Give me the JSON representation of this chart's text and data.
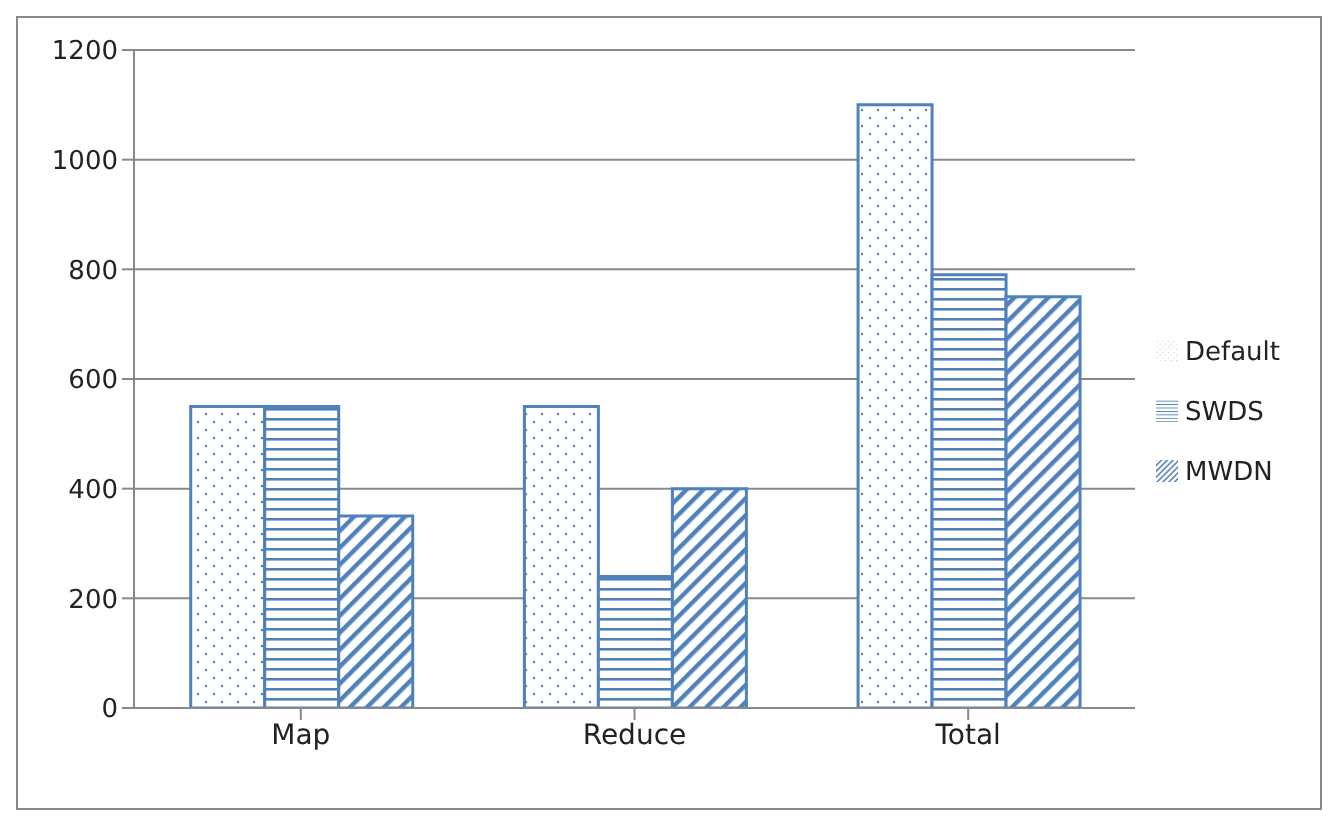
{
  "chart_data": {
    "type": "bar",
    "categories": [
      "Map",
      "Reduce",
      "Total"
    ],
    "series": [
      {
        "name": "Default",
        "color": "#4f81bd",
        "values": [
          550,
          550,
          1100
        ]
      },
      {
        "name": "SWDS",
        "color": "#4f81bd",
        "values": [
          550,
          240,
          790
        ]
      },
      {
        "name": "MWDN",
        "color": "#4f81bd",
        "values": [
          350,
          400,
          750
        ]
      }
    ],
    "ylim": [
      0,
      1200
    ],
    "yticks": [
      0,
      200,
      400,
      600,
      800,
      1000,
      1200
    ],
    "grid": "y",
    "legend": "right"
  }
}
